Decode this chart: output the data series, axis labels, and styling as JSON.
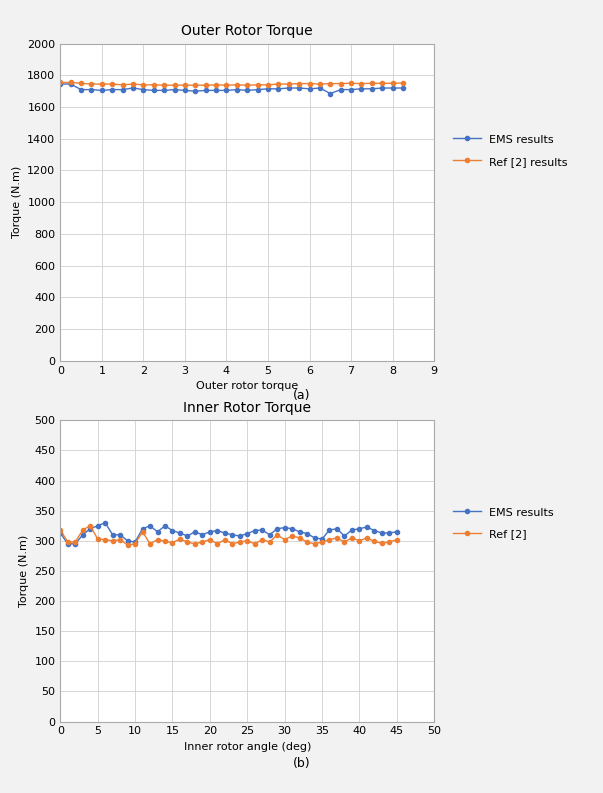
{
  "top_title": "Outer Rotor Torque",
  "bottom_title": "Inner Rotor Torque",
  "top_xlabel": "Outer rotor torque",
  "bottom_xlabel": "Inner rotor angle (deg)",
  "ylabel": "Torque (N.m)",
  "label_a": "(a)",
  "label_b": "(b)",
  "outer_x_ems": [
    0.0,
    0.25,
    0.5,
    0.75,
    1.0,
    1.25,
    1.5,
    1.75,
    2.0,
    2.25,
    2.5,
    2.75,
    3.0,
    3.25,
    3.5,
    3.75,
    4.0,
    4.25,
    4.5,
    4.75,
    5.0,
    5.25,
    5.5,
    5.75,
    6.0,
    6.25,
    6.5,
    6.75,
    7.0,
    7.25,
    7.5,
    7.75,
    8.0,
    8.25
  ],
  "outer_y_ems": [
    1745,
    1745,
    1710,
    1710,
    1705,
    1710,
    1710,
    1720,
    1710,
    1705,
    1705,
    1710,
    1705,
    1700,
    1705,
    1705,
    1705,
    1710,
    1705,
    1710,
    1715,
    1715,
    1720,
    1720,
    1715,
    1720,
    1685,
    1710,
    1710,
    1715,
    1715,
    1720,
    1720,
    1720
  ],
  "outer_x_ref": [
    0.0,
    0.25,
    0.5,
    0.75,
    1.0,
    1.25,
    1.5,
    1.75,
    2.0,
    2.25,
    2.5,
    2.75,
    3.0,
    3.25,
    3.5,
    3.75,
    4.0,
    4.25,
    4.5,
    4.75,
    5.0,
    5.25,
    5.5,
    5.75,
    6.0,
    6.25,
    6.5,
    6.75,
    7.0,
    7.25,
    7.5,
    7.75,
    8.0,
    8.25
  ],
  "outer_y_ref": [
    1755,
    1755,
    1750,
    1745,
    1745,
    1745,
    1740,
    1745,
    1740,
    1740,
    1738,
    1738,
    1738,
    1738,
    1738,
    1740,
    1738,
    1740,
    1738,
    1740,
    1740,
    1745,
    1745,
    1748,
    1748,
    1745,
    1748,
    1748,
    1750,
    1748,
    1750,
    1750,
    1750,
    1752
  ],
  "inner_x_ems": [
    0.0,
    1.0,
    2.0,
    3.0,
    4.0,
    5.0,
    6.0,
    7.0,
    8.0,
    9.0,
    10.0,
    11.0,
    12.0,
    13.0,
    14.0,
    15.0,
    16.0,
    17.0,
    18.0,
    19.0,
    20.0,
    21.0,
    22.0,
    23.0,
    24.0,
    25.0,
    26.0,
    27.0,
    28.0,
    29.0,
    30.0,
    31.0,
    32.0,
    33.0,
    34.0,
    35.0,
    36.0,
    37.0,
    38.0,
    39.0,
    40.0,
    41.0,
    42.0,
    43.0,
    44.0,
    45.0
  ],
  "inner_y_ems": [
    313,
    295,
    295,
    310,
    320,
    325,
    330,
    310,
    310,
    300,
    298,
    320,
    325,
    315,
    325,
    317,
    313,
    308,
    315,
    310,
    315,
    317,
    313,
    310,
    308,
    312,
    317,
    318,
    310,
    320,
    322,
    320,
    315,
    312,
    305,
    303,
    318,
    320,
    308,
    318,
    320,
    323,
    317,
    313,
    313,
    315
  ],
  "inner_x_ref": [
    0.0,
    1.0,
    2.0,
    3.0,
    4.0,
    5.0,
    6.0,
    7.0,
    8.0,
    9.0,
    10.0,
    11.0,
    12.0,
    13.0,
    14.0,
    15.0,
    16.0,
    17.0,
    18.0,
    19.0,
    20.0,
    21.0,
    22.0,
    23.0,
    24.0,
    25.0,
    26.0,
    27.0,
    28.0,
    29.0,
    30.0,
    31.0,
    32.0,
    33.0,
    34.0,
    35.0,
    36.0,
    37.0,
    38.0,
    39.0,
    40.0,
    41.0,
    42.0,
    43.0,
    44.0,
    45.0
  ],
  "inner_y_ref": [
    318,
    298,
    298,
    318,
    325,
    303,
    302,
    300,
    302,
    293,
    295,
    315,
    295,
    302,
    299,
    297,
    303,
    298,
    295,
    298,
    302,
    295,
    302,
    295,
    298,
    300,
    295,
    302,
    298,
    310,
    302,
    308,
    305,
    298,
    295,
    298,
    302,
    305,
    298,
    305,
    300,
    305,
    299,
    296,
    298,
    302
  ],
  "ems_color": "#4472C4",
  "ref_color": "#ED7D31",
  "grid_color": "#D0D0D0",
  "spine_color": "#AAAAAA",
  "legend1_ems": "EMS results",
  "legend1_ref": "Ref [2] results",
  "legend2_ems": "EMS results",
  "legend2_ref": "Ref [2]",
  "outer_ylim": [
    0,
    2000
  ],
  "outer_xlim": [
    0,
    9
  ],
  "outer_yticks": [
    0,
    200,
    400,
    600,
    800,
    1000,
    1200,
    1400,
    1600,
    1800,
    2000
  ],
  "outer_xticks": [
    0,
    1,
    2,
    3,
    4,
    5,
    6,
    7,
    8,
    9
  ],
  "inner_ylim": [
    0,
    500
  ],
  "inner_xlim": [
    0,
    50
  ],
  "inner_yticks": [
    0,
    50,
    100,
    150,
    200,
    250,
    300,
    350,
    400,
    450,
    500
  ],
  "inner_xticks": [
    0,
    5,
    10,
    15,
    20,
    25,
    30,
    35,
    40,
    45,
    50
  ],
  "bg_color": "#F2F2F2",
  "plot_bg_color": "#FFFFFF",
  "marker": "o",
  "markersize": 3,
  "linewidth": 1.0,
  "title_fontsize": 10,
  "label_fontsize": 8,
  "tick_fontsize": 8,
  "legend_fontsize": 8,
  "annotation_fontsize": 9
}
